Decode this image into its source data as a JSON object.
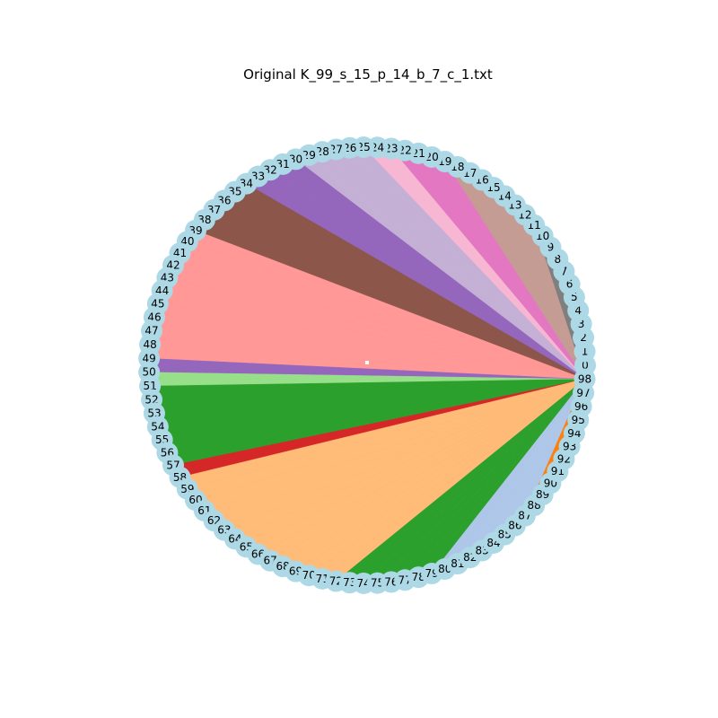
{
  "title": "Original K_99_s_15_p_14_b_7_c_1.txt",
  "graph": {
    "node_count": 99,
    "node_labels": [
      "0",
      "1",
      "2",
      "3",
      "4",
      "5",
      "6",
      "7",
      "8",
      "9",
      "10",
      "11",
      "12",
      "13",
      "14",
      "15",
      "16",
      "17",
      "18",
      "19",
      "20",
      "21",
      "22",
      "23",
      "24",
      "25",
      "26",
      "27",
      "28",
      "29",
      "30",
      "31",
      "32",
      "33",
      "34",
      "35",
      "36",
      "37",
      "38",
      "39",
      "40",
      "41",
      "42",
      "43",
      "44",
      "45",
      "46",
      "47",
      "48",
      "49",
      "50",
      "51",
      "52",
      "53",
      "54",
      "55",
      "56",
      "57",
      "58",
      "59",
      "60",
      "61",
      "62",
      "63",
      "64",
      "65",
      "66",
      "67",
      "68",
      "69",
      "70",
      "71",
      "72",
      "73",
      "74",
      "75",
      "76",
      "77",
      "78",
      "79",
      "80",
      "81",
      "82",
      "83",
      "84",
      "85",
      "86",
      "87",
      "88",
      "89",
      "90",
      "91",
      "92",
      "93",
      "94",
      "95",
      "96",
      "97",
      "98"
    ],
    "hub_node": "98",
    "node_color": "#add8e6",
    "group_colors": [
      "#1f77b4",
      "#aec7e8",
      "#ff7f0e",
      "#ffbb78",
      "#2ca02c",
      "#98df8a",
      "#d62728",
      "#ff9896",
      "#9467bd",
      "#c5b0d5",
      "#8c564b",
      "#c49c94",
      "#e377c2",
      "#f7b6d2",
      "#7f7f7f"
    ],
    "fans": [
      {
        "color": "#7f7f7f",
        "from": 0,
        "to": 11
      },
      {
        "color": "#c49c94",
        "from": 11,
        "to": 20
      },
      {
        "color": "#e377c2",
        "from": 19,
        "to": 27
      },
      {
        "color": "#f7b6d2",
        "from": 23,
        "to": 28
      },
      {
        "color": "#c5b0d5",
        "from": 25,
        "to": 37
      },
      {
        "color": "#9467bd",
        "from": 30,
        "to": 37
      },
      {
        "color": "#8c564b",
        "from": 34,
        "to": 45
      },
      {
        "color": "#ff9896",
        "from": 39,
        "to": 50
      },
      {
        "color": "#9467bd",
        "from": 49,
        "to": 51
      },
      {
        "color": "#98df8a",
        "from": 50,
        "to": 58
      },
      {
        "color": "#2ca02c",
        "from": 51,
        "to": 57
      },
      {
        "color": "#d62728",
        "from": 57,
        "to": 72
      },
      {
        "color": "#ffbb78",
        "from": 58,
        "to": 73
      },
      {
        "color": "#2ca02c",
        "from": 72,
        "to": 80
      },
      {
        "color": "#aec7e8",
        "from": 79,
        "to": 88
      },
      {
        "color": "#ff7f0e",
        "from": 87,
        "to": 96
      },
      {
        "color": "#aec7e8",
        "from": 94,
        "to": 97
      }
    ]
  }
}
